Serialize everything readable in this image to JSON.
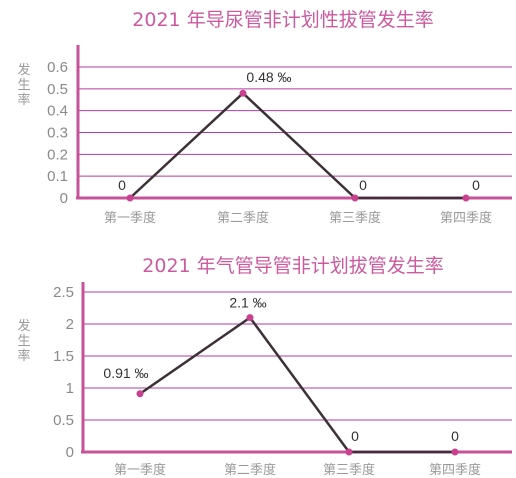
{
  "chart_data": [
    {
      "type": "line",
      "title": "2021 年导尿管非计划性拔管发生率",
      "ylabel": "发生率",
      "categories": [
        "第一季度",
        "第二季度",
        "第三季度",
        "第四季度"
      ],
      "values": [
        0,
        0.48,
        0,
        0
      ],
      "data_labels": [
        "0",
        "0.48 ‰",
        "0",
        "0"
      ],
      "yticks": [
        "0",
        "0.1",
        "0.2",
        "0.3",
        "0.4",
        "0.5",
        "0.6"
      ],
      "ylim": [
        0,
        0.6
      ],
      "grid": true,
      "colors": {
        "axis": "#c8529a",
        "grid": "#b03ea0",
        "line": "#3d3138",
        "marker": "#c9418f",
        "title": "#cc5a9f"
      }
    },
    {
      "type": "line",
      "title": "2021 年气管导管非计划拔管发生率",
      "ylabel": "发生率",
      "categories": [
        "第一季度",
        "第二季度",
        "第三季度",
        "第四季度"
      ],
      "values": [
        0.91,
        2.1,
        0,
        0
      ],
      "data_labels": [
        "0.91 ‰",
        "2.1 ‰",
        "0",
        "0"
      ],
      "yticks": [
        "0",
        "0.5",
        "1",
        "1.5",
        "2",
        "2.5"
      ],
      "ylim": [
        0,
        2.5
      ],
      "grid": true,
      "colors": {
        "axis": "#c8529a",
        "grid": "#b03ea0",
        "line": "#3d3138",
        "marker": "#c9418f",
        "title": "#cc5a9f"
      }
    }
  ]
}
